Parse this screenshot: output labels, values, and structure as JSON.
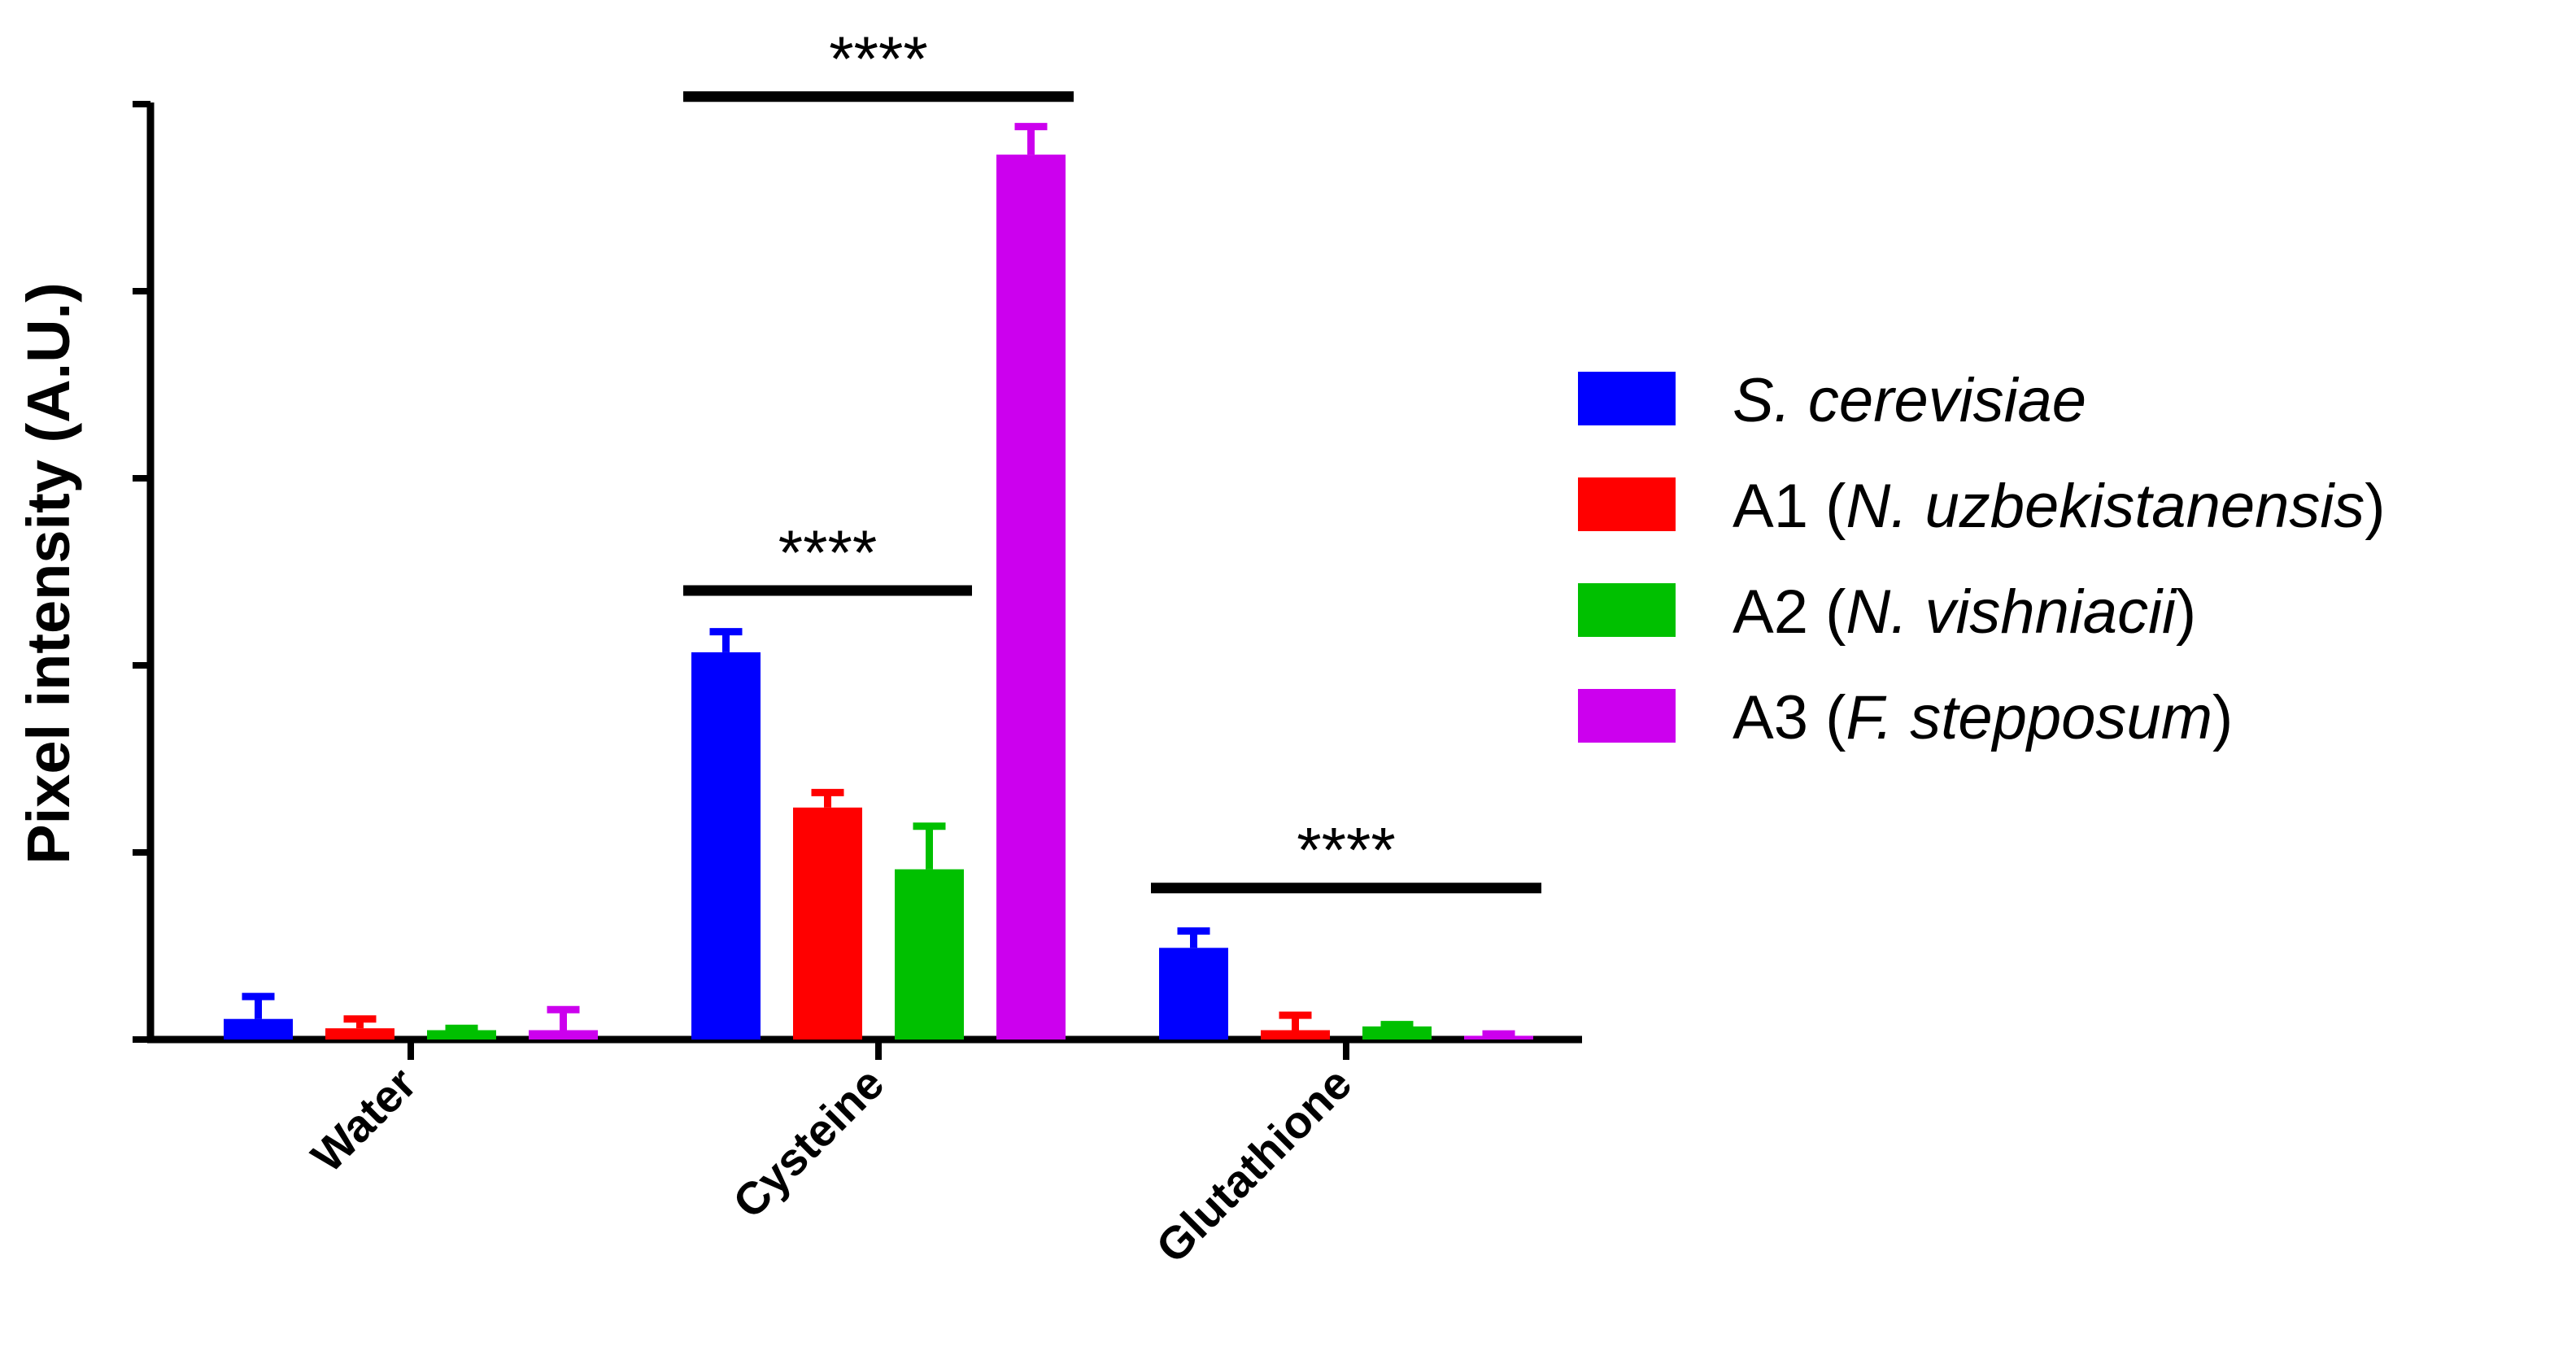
{
  "chart_data": {
    "type": "bar",
    "title": "",
    "xlabel": "",
    "ylabel": "Pixel intensity (A.U.)",
    "ylim": [
      0,
      5
    ],
    "yticks": [
      0,
      1,
      2,
      3,
      4,
      5
    ],
    "y_tick_labels_shown": false,
    "categories": [
      "Water",
      "Cysteine",
      "Glutathione"
    ],
    "series": [
      {
        "name": "S. cerevisiae",
        "color": "#0000ff",
        "legend": [
          {
            "text": "S. cerevisiae",
            "italic": true
          }
        ],
        "values": [
          0.11,
          2.07,
          0.49
        ],
        "errors": [
          0.12,
          0.11,
          0.09
        ]
      },
      {
        "name": "A1 (N. uzbekistanensis)",
        "color": "#ff0000",
        "legend": [
          {
            "text": "A1 (",
            "italic": false
          },
          {
            "text": "N. uzbekistanensis",
            "italic": true
          },
          {
            "text": ")",
            "italic": false
          }
        ],
        "values": [
          0.06,
          1.24,
          0.05
        ],
        "errors": [
          0.05,
          0.08,
          0.08
        ]
      },
      {
        "name": "A2 (N. vishniacii)",
        "color": "#00c000",
        "legend": [
          {
            "text": "A2 (",
            "italic": false
          },
          {
            "text": "N. vishniacii",
            "italic": true
          },
          {
            "text": ")",
            "italic": false
          }
        ],
        "values": [
          0.05,
          0.91,
          0.07
        ],
        "errors": [
          0.01,
          0.23,
          0.01
        ]
      },
      {
        "name": "A3 (F. stepposum)",
        "color": "#cc00ee",
        "legend": [
          {
            "text": "A3 (",
            "italic": false
          },
          {
            "text": "F. stepposum",
            "italic": true
          },
          {
            "text": ")",
            "italic": false
          }
        ],
        "values": [
          0.05,
          4.73,
          0.02
        ],
        "errors": [
          0.11,
          0.15,
          0.01
        ]
      }
    ],
    "significance": [
      {
        "label": "****",
        "category": "Cysteine",
        "from_series": 0,
        "to_series": 3,
        "y": 5.04
      },
      {
        "label": "****",
        "category": "Cysteine",
        "from_series": 0,
        "to_series": 2,
        "y": 2.4
      },
      {
        "label": "****",
        "category": "Glutathione",
        "from_series": 0,
        "to_series": 3,
        "y": 0.81
      }
    ],
    "legend_position": "right"
  }
}
